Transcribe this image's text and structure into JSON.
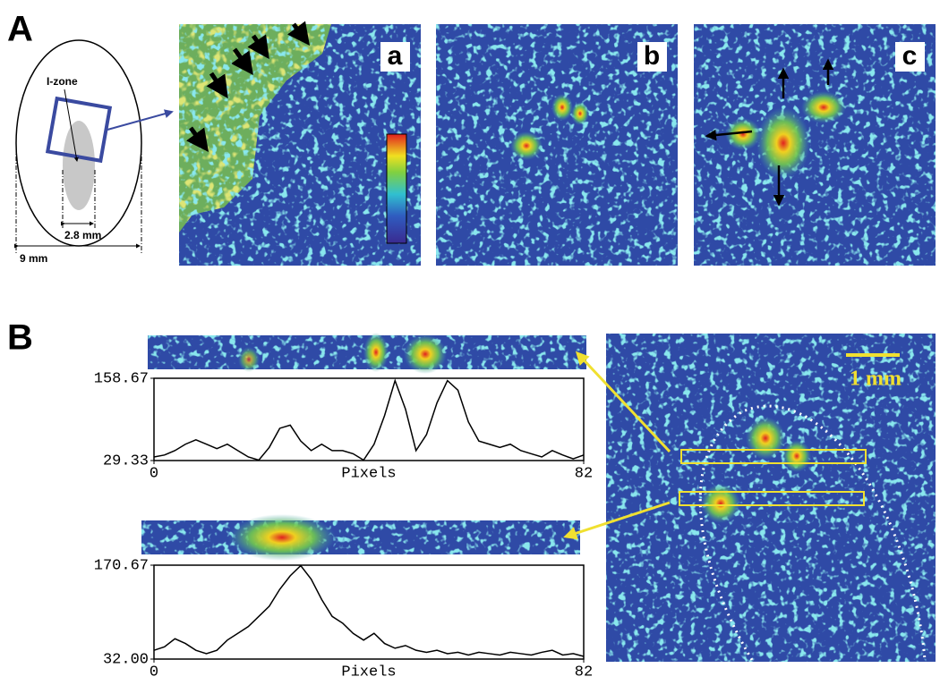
{
  "panel_a": {
    "label": "A",
    "diagram": {
      "zone_label": "I-zone",
      "inner_width": "2.8 mm",
      "outer_width": "9 mm"
    },
    "images": [
      "a",
      "b",
      "c"
    ]
  },
  "panel_b": {
    "label": "B",
    "scale_bar": "1 mm",
    "profiles": [
      {
        "xlabel": "Pixels",
        "xlim": [
          0,
          82
        ],
        "xticks": [
          0,
          82
        ],
        "ylim": [
          29.33,
          158.67
        ],
        "yticks": [
          29.33,
          158.67
        ],
        "color": "#000000",
        "x": [
          0,
          2,
          4,
          6,
          8,
          10,
          12,
          14,
          16,
          18,
          20,
          22,
          24,
          26,
          28,
          30,
          32,
          34,
          36,
          38,
          40,
          42,
          44,
          46,
          48,
          50,
          52,
          54,
          56,
          58,
          60,
          62,
          64,
          66,
          68,
          70,
          72,
          74,
          76,
          78,
          80,
          82
        ],
        "values": [
          35,
          38,
          45,
          55,
          62,
          55,
          48,
          55,
          45,
          35,
          30,
          50,
          80,
          85,
          60,
          45,
          55,
          45,
          45,
          40,
          30,
          55,
          100,
          155,
          110,
          45,
          70,
          120,
          155,
          140,
          90,
          60,
          55,
          50,
          55,
          45,
          40,
          35,
          45,
          38,
          32,
          38
        ]
      },
      {
        "xlabel": "Pixels",
        "xlim": [
          0,
          82
        ],
        "xticks": [
          0,
          82
        ],
        "ylim": [
          32,
          170.67
        ],
        "yticks": [
          {
            "value": 32,
            "label": "32.00"
          },
          170.67
        ],
        "color": "#000000",
        "x": [
          0,
          2,
          4,
          6,
          8,
          10,
          12,
          14,
          16,
          18,
          20,
          22,
          24,
          26,
          28,
          30,
          32,
          34,
          36,
          38,
          40,
          42,
          44,
          46,
          48,
          50,
          52,
          54,
          56,
          58,
          60,
          62,
          64,
          66,
          68,
          70,
          72,
          74,
          76,
          78,
          80,
          82
        ],
        "values": [
          45,
          50,
          62,
          55,
          45,
          40,
          45,
          60,
          70,
          80,
          95,
          110,
          135,
          155,
          170,
          150,
          120,
          95,
          85,
          70,
          60,
          70,
          55,
          48,
          52,
          45,
          42,
          45,
          40,
          42,
          38,
          42,
          40,
          38,
          42,
          40,
          38,
          42,
          45,
          38,
          40,
          36
        ]
      }
    ]
  }
}
